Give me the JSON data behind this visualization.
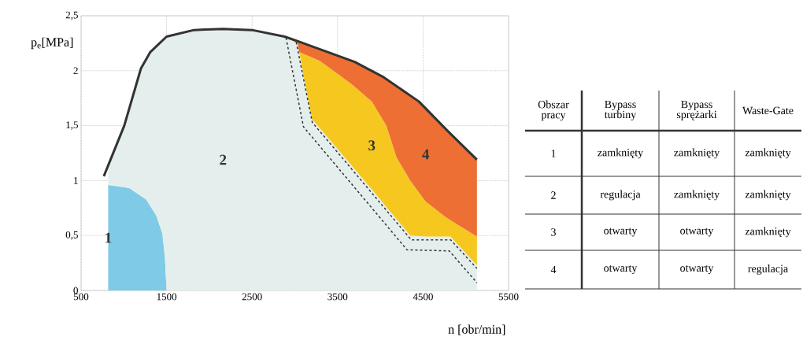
{
  "chart_data": [
    {
      "type": "area",
      "stacked": true,
      "xlabel": "n [obr/min]",
      "ylabel": "p$_{e}$[MPa]",
      "xlim": [
        500,
        5500
      ],
      "ylim": [
        0,
        2.5
      ],
      "xticks": [
        500,
        1500,
        2500,
        3500,
        4500,
        5500
      ],
      "yticks": [
        0,
        {
          "value": 0.5,
          "label": "0,5"
        },
        1,
        {
          "value": 1.5,
          "label": "1,5"
        },
        2,
        {
          "value": 2.5,
          "label": "2,5"
        }
      ],
      "grid": true,
      "x": [
        817,
        1000,
        1070,
        1200,
        1260,
        1380,
        1450,
        1480,
        1500,
        1820,
        2160,
        2500,
        2880,
        3030,
        3050,
        3200,
        3290,
        3660,
        3900,
        4070,
        4190,
        4350,
        4530,
        4760,
        4820,
        5130
      ],
      "series": [
        {
          "type": "area",
          "color": "#7fcae6",
          "values": [
            0.96,
            0.94,
            0.93,
            0.86,
            0.83,
            0.68,
            0.52,
            0.31,
            0,
            0,
            0,
            0,
            0,
            0,
            0,
            0,
            0,
            0,
            0,
            0,
            0,
            0,
            0,
            0,
            0,
            0
          ]
        },
        {
          "type": "area",
          "color": "#e4efed",
          "values": [
            0.19,
            0.55,
            0.73,
            1.16,
            1.27,
            1.56,
            1.77,
            1.99,
            2.31,
            2.37,
            2.38,
            2.37,
            2.31,
            2.25,
            2.17,
            1.56,
            1.48,
            1.14,
            0.92,
            0.76,
            0.65,
            0.5,
            0.49,
            0.49,
            0.49,
            0.23
          ]
        },
        {
          "type": "area",
          "color": "#f6c81f",
          "values": [
            0,
            0,
            0,
            0,
            0,
            0,
            0,
            0,
            0,
            0,
            0,
            0,
            0,
            0,
            0,
            0.56,
            0.61,
            0.74,
            0.8,
            0.74,
            0.56,
            0.5,
            0.32,
            0.18,
            0.15,
            0.26
          ]
        },
        {
          "type": "area",
          "color": "#ee6f33",
          "values": [
            0,
            0,
            0,
            0,
            0,
            0,
            0,
            0,
            0,
            0,
            0,
            0,
            0,
            0.02,
            0.1,
            0.1,
            0.1,
            0.21,
            0.28,
            0.42,
            0.65,
            0.77,
            0.86,
            0.81,
            0.78,
            0.7
          ]
        },
        {
          "type": "line",
          "color": "#333333",
          "line_style": "solid",
          "x": [
            766,
            1005,
            1200,
            1310,
            1500,
            1820,
            2160,
            2500,
            2880,
            3030,
            3700,
            4040,
            4450,
            4790,
            5130
          ],
          "values": [
            1.04,
            1.5,
            2.02,
            2.17,
            2.31,
            2.37,
            2.38,
            2.37,
            2.31,
            2.27,
            2.08,
            1.94,
            1.72,
            1.45,
            1.19
          ]
        },
        {
          "type": "line",
          "color": "#333333",
          "line_style": "dashed",
          "x": [
            2897,
            3101,
            4312,
            4806,
            5130
          ],
          "values": [
            2.3,
            1.49,
            0.37,
            0.36,
            0.07
          ]
        },
        {
          "type": "line",
          "color": "#333333",
          "line_style": "dashed",
          "x": [
            3016,
            3204,
            4363,
            4823,
            5130
          ],
          "values": [
            2.26,
            1.53,
            0.46,
            0.46,
            0.2
          ]
        }
      ],
      "annotations": [
        "1",
        "2",
        "3",
        "4",
        "Obszar pracy",
        "Bypass turbiny",
        "Bypass sprężarki",
        "Waste-Gate",
        "1",
        "zamknięty",
        "zamknięty",
        "zamknięty",
        "2",
        "regulacja",
        "zamknięty",
        "zamknięty",
        "3",
        "otwarty",
        "otwarty",
        "zamknięty",
        "4",
        "otwarty",
        "otwarty",
        "regulacja"
      ]
    }
  ]
}
